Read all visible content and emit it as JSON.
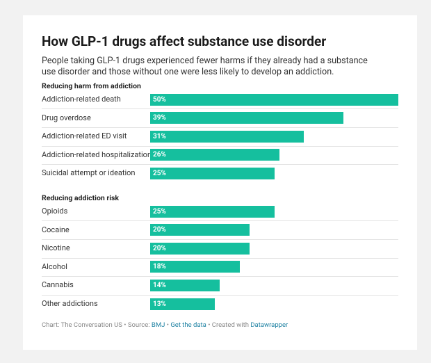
{
  "chart_data": {
    "type": "bar",
    "orientation": "horizontal",
    "title": "How GLP-1 drugs affect substance use disorder",
    "subtitle": "People taking GLP-1 drugs experienced fewer harms if they already had a substance use disorder and those without one were less likely to develop an addiction.",
    "color": "#15bf9e",
    "xlim": [
      0,
      50
    ],
    "groups": [
      {
        "name": "Reducing harm from addiction",
        "categories": [
          "Addiction-related death",
          "Drug overdose",
          "Addiction-related ED visit",
          "Addiction-related hospitalization",
          "Suicidal attempt or ideation"
        ],
        "values": [
          50,
          39,
          31,
          26,
          25
        ],
        "value_labels": [
          "50%",
          "39%",
          "31%",
          "26%",
          "25%"
        ]
      },
      {
        "name": "Reducing addiction risk",
        "categories": [
          "Opioids",
          "Cocaine",
          "Nicotine",
          "Alcohol",
          "Cannabis",
          "Other addictions"
        ],
        "values": [
          25,
          20,
          20,
          18,
          14,
          13
        ],
        "value_labels": [
          "25%",
          "20%",
          "20%",
          "18%",
          "14%",
          "13%"
        ]
      }
    ]
  },
  "footer": {
    "credit": "Chart: The Conversation US",
    "separator": "•",
    "source_label": "Source:",
    "source": "BMJ",
    "data_link": "Get the data",
    "created_label": "Created with",
    "tool": "Datawrapper"
  }
}
